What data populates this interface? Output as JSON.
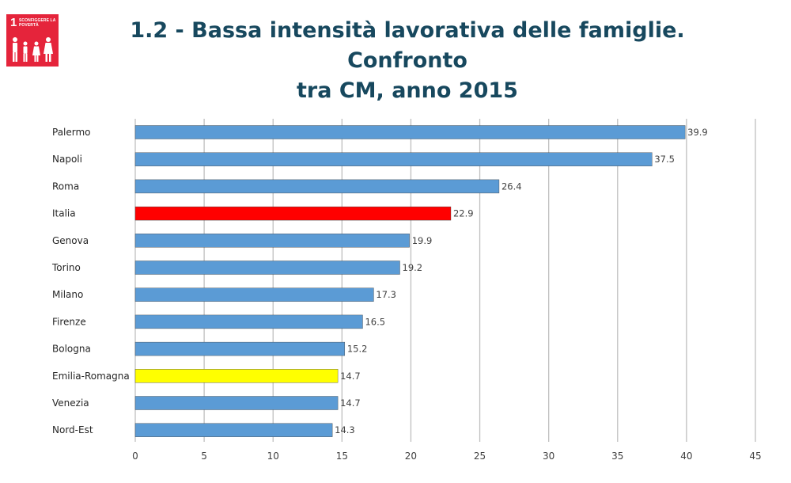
{
  "header": {
    "title_line1": "1.2 - Bassa intensità lavorativa delle famiglie. Confronto",
    "title_line2": "tra CM, anno 2015",
    "badge": {
      "number": "1",
      "text": "SCONFIGGERE LA POVERTÀ",
      "icon": "family-icon",
      "color": "#e5243b"
    }
  },
  "chart_data": {
    "type": "bar",
    "orientation": "horizontal",
    "title": "",
    "xlabel": "",
    "ylabel": "",
    "xlim": [
      0,
      45
    ],
    "x_ticks": [
      0,
      5,
      10,
      15,
      20,
      25,
      30,
      35,
      40,
      45
    ],
    "grid": true,
    "legend": "none",
    "categories": [
      "Palermo",
      "Napoli",
      "Roma",
      "Italia",
      "Genova",
      "Torino",
      "Milano",
      "Firenze",
      "Bologna",
      "Emilia-Romagna",
      "Venezia",
      "Nord-Est"
    ],
    "values": [
      39.9,
      37.5,
      26.4,
      22.9,
      19.9,
      19.2,
      17.3,
      16.5,
      15.2,
      14.7,
      14.7,
      14.3
    ],
    "data_labels": [
      "39.9",
      "37.5",
      "26.4",
      "22.9",
      "19.9",
      "19.2",
      "17.3",
      "16.5",
      "15.2",
      "14.7",
      "14.7",
      "14.3"
    ],
    "colors": {
      "default": "#5b9bd5",
      "Italia": "#ff0000",
      "Emilia-Romagna": "#ffff00"
    }
  }
}
